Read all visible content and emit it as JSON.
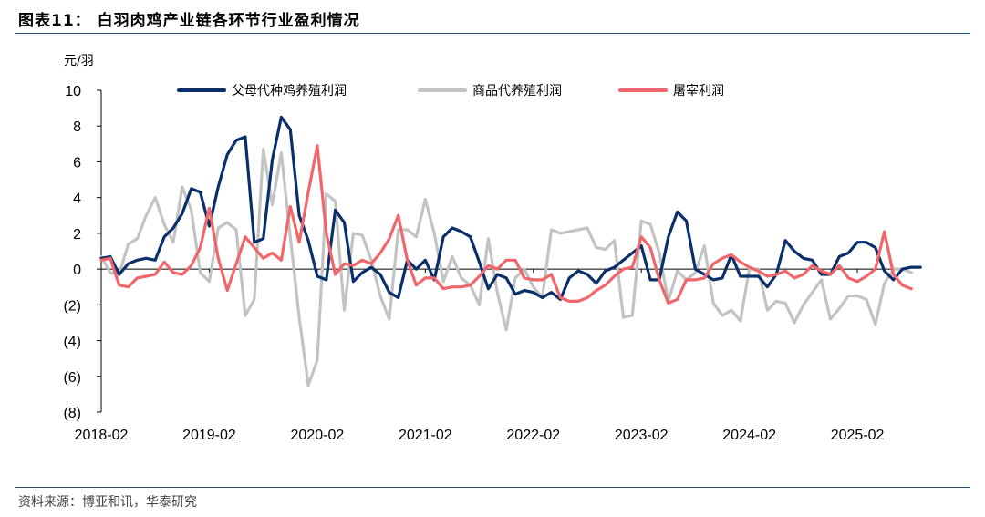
{
  "header": {
    "title": "图表11：  白羽肉鸡产业链各环节行业盈利情况"
  },
  "footer": {
    "source": "资料来源：博亚和讯，华泰研究"
  },
  "chart_data": {
    "type": "line",
    "unit_label": "元/羽",
    "ylim": [
      -8,
      10
    ],
    "y_ticks": [
      10,
      8,
      6,
      4,
      2,
      0,
      -2,
      -4,
      -6,
      -8
    ],
    "y_tick_labels": [
      "10",
      "8",
      "6",
      "4",
      "2",
      "0",
      "(2)",
      "(4)",
      "(6)",
      "(8)"
    ],
    "x_tick_labels": [
      "2018-02",
      "2019-02",
      "2020-02",
      "2021-02",
      "2022-02",
      "2023-02",
      "2024-02",
      "2025-02"
    ],
    "x_start": "2018-02",
    "x_end": "2025-06",
    "grid": false,
    "legend_position": "top",
    "series": [
      {
        "name": "父母代种鸡养殖利润",
        "color": "#0b2f6b",
        "values": [
          0.6,
          0.7,
          -0.3,
          0.3,
          0.5,
          0.6,
          0.5,
          1.8,
          2.3,
          3.1,
          4.5,
          4.3,
          2.4,
          4.6,
          6.4,
          7.2,
          7.4,
          1.5,
          1.7,
          6.1,
          8.5,
          7.8,
          3.0,
          1.6,
          -0.4,
          -0.6,
          3.3,
          2.6,
          -0.7,
          -0.2,
          0.1,
          -0.3,
          -1.3,
          -1.6,
          0.5,
          0.0,
          0.5,
          -0.6,
          1.8,
          2.3,
          2.1,
          1.8,
          0.4,
          -1.1,
          -0.3,
          -0.5,
          -1.4,
          -1.2,
          -1.3,
          -1.6,
          -1.3,
          -1.7,
          -0.5,
          -0.1,
          -0.3,
          -0.8,
          -0.1,
          0.1,
          0.5,
          0.9,
          1.3,
          -0.6,
          -0.6,
          1.8,
          3.2,
          2.7,
          0.0,
          -0.3,
          -0.6,
          -0.5,
          0.8,
          -0.4,
          -0.4,
          -0.4,
          -1.0,
          -0.3,
          1.6,
          1.0,
          0.6,
          0.5,
          -0.3,
          -0.3,
          0.7,
          0.9,
          1.5,
          1.5,
          1.2,
          -0.1,
          -0.6,
          0.0,
          0.1,
          0.1
        ]
      },
      {
        "name": "商品代养殖利润",
        "color": "#c3c3c3",
        "values": [
          0.7,
          -0.2,
          -0.3,
          1.4,
          1.7,
          3.0,
          4.0,
          2.5,
          1.5,
          4.6,
          3.3,
          -0.2,
          -0.7,
          2.3,
          2.6,
          2.2,
          -2.6,
          -1.7,
          6.7,
          3.6,
          6.5,
          1.8,
          -2.7,
          -6.5,
          -5.1,
          4.2,
          3.8,
          -2.3,
          2.0,
          1.9,
          0.5,
          -1.5,
          -2.8,
          2.2,
          2.2,
          1.8,
          3.9,
          2.0,
          -0.7,
          0.7,
          -0.5,
          -0.9,
          -2.0,
          1.7,
          -1.3,
          -3.4,
          -0.5,
          0.0,
          -1.0,
          -1.6,
          2.2,
          2.0,
          2.1,
          2.2,
          2.3,
          1.2,
          1.1,
          1.6,
          -2.7,
          -2.6,
          2.7,
          2.5,
          0.9,
          -1.8,
          -0.1,
          -0.6,
          -0.2,
          1.3,
          -1.9,
          -2.6,
          -2.3,
          -2.9,
          0.0,
          0.0,
          -2.3,
          -1.8,
          -1.9,
          -3.0,
          -2.0,
          -1.3,
          -0.6,
          -2.8,
          -2.2,
          -1.5,
          -1.5,
          -1.7,
          -3.1,
          -0.8,
          0.0,
          0.0,
          -0.2
        ]
      },
      {
        "name": "屠宰利润",
        "color": "#f0666b",
        "values": [
          0.5,
          0.6,
          -0.9,
          -1.0,
          -0.5,
          -0.4,
          -0.3,
          0.4,
          -0.2,
          -0.3,
          0.2,
          1.2,
          3.4,
          0.6,
          -1.2,
          0.3,
          1.8,
          1.2,
          0.6,
          0.9,
          0.5,
          3.5,
          1.5,
          4.3,
          6.9,
          2.0,
          -0.3,
          0.3,
          0.2,
          0.5,
          0.3,
          0.9,
          1.7,
          3.0,
          0.5,
          -0.9,
          -0.5,
          -0.5,
          -1.1,
          -1.0,
          -1.0,
          -0.9,
          -0.4,
          0.2,
          0.0,
          0.5,
          0.5,
          -0.5,
          -0.6,
          -0.6,
          -0.3,
          -1.6,
          -1.8,
          -1.8,
          -1.6,
          -1.2,
          -0.9,
          -0.4,
          0.0,
          0.1,
          1.8,
          1.2,
          -0.6,
          -1.9,
          -1.7,
          -0.6,
          -0.6,
          -0.5,
          0.3,
          0.6,
          0.8,
          0.4,
          0.1,
          -0.1,
          -0.4,
          -0.3,
          -0.1,
          -0.5,
          -0.3,
          0.2,
          -0.1,
          -0.3,
          0.2,
          -0.5,
          -0.7,
          -0.4,
          0.0,
          2.1,
          -0.3,
          -0.9,
          -1.1
        ]
      }
    ]
  }
}
